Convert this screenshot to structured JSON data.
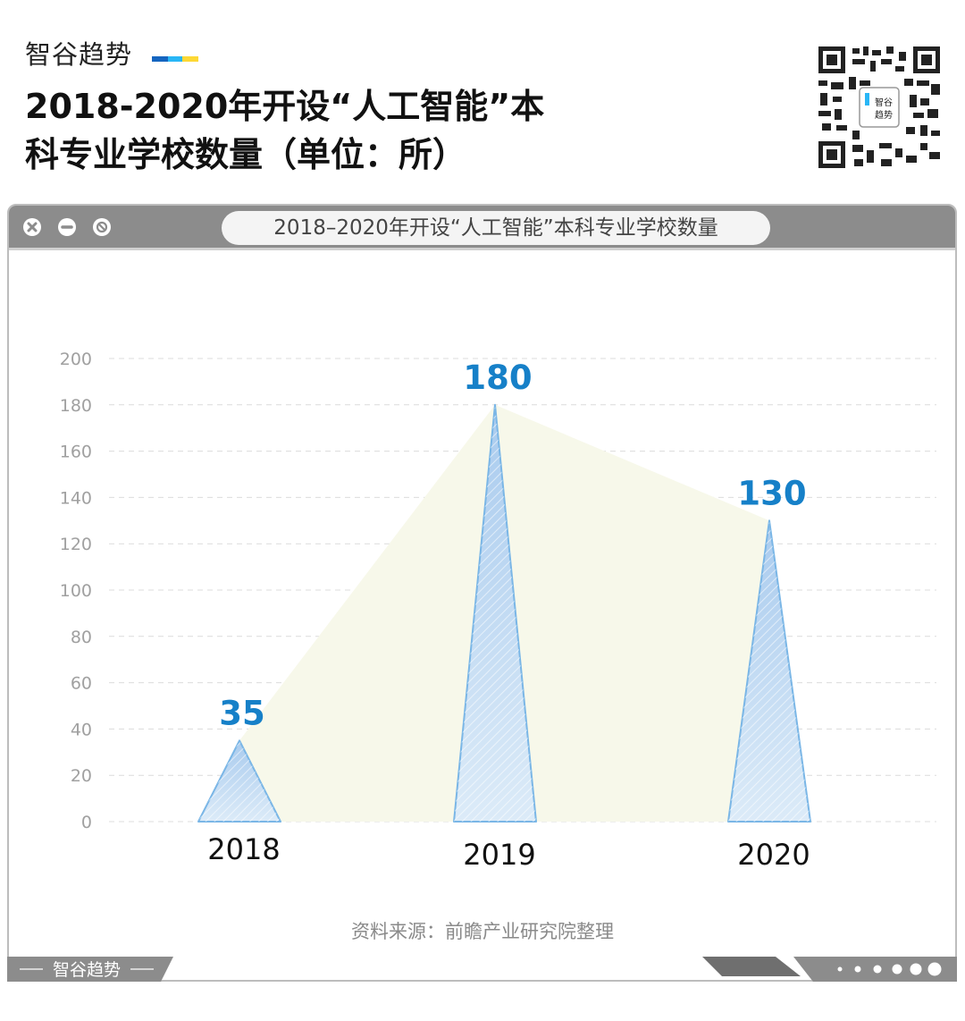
{
  "brand": {
    "name": "智谷趋势",
    "bar_colors": [
      "#1565c0",
      "#29b6f6",
      "#fdd835"
    ]
  },
  "page_title_line1": "2018-2020年开设“人工智能”本",
  "page_title_line2": "科专业学校数量（单位：所）",
  "window": {
    "tab_title": "2018–2020年开设“人工智能”本科专业学校数量"
  },
  "chart_data": {
    "type": "bar",
    "shape": "triangle",
    "categories": [
      "2018",
      "2019",
      "2020"
    ],
    "values": [
      35,
      180,
      130
    ],
    "data_labels": [
      "35",
      "180",
      "130"
    ],
    "ylim": [
      0,
      200
    ],
    "yticks": [
      "0",
      "20",
      "40",
      "60",
      "80",
      "100",
      "120",
      "140",
      "160",
      "180",
      "200"
    ],
    "grid": true,
    "colors": {
      "bar": "#7ab6e6",
      "bar_fill": "#cfe2f5",
      "label": "#1680c8",
      "area": "#f7f8ea"
    }
  },
  "source": "资料来源：前瞻产业研究院整理",
  "footer": {
    "brand": "智谷趋势"
  }
}
